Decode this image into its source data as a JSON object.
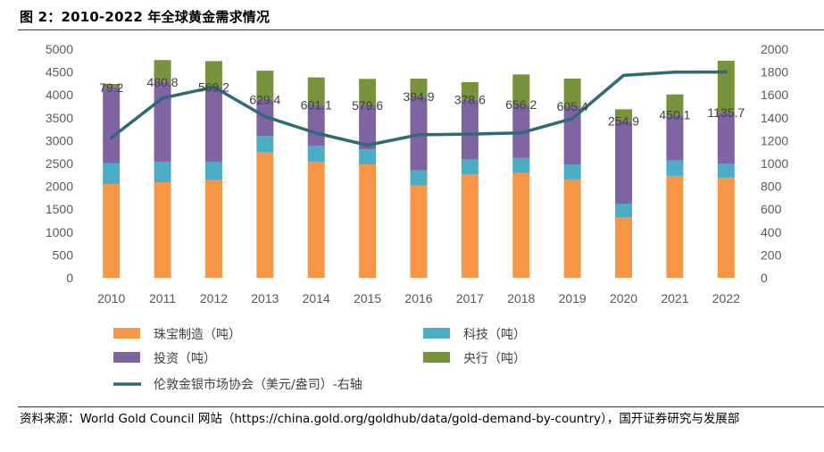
{
  "header": {
    "title": "图 2：2010-2022 年全球黄金需求情况"
  },
  "footer": {
    "source": "资料来源：World Gold Council 网站（https://china.gold.org/goldhub/data/gold-demand-by-country），国开证券研究与发展部"
  },
  "colors": {
    "jewelry": "#f79646",
    "tech": "#4bacc6",
    "invest": "#8064a2",
    "central": "#77933c",
    "price": "#2e6b74",
    "rule": "#c00000"
  },
  "chart_data": {
    "type": "bar",
    "stacked": true,
    "categories": [
      "2010",
      "2011",
      "2012",
      "2013",
      "2014",
      "2015",
      "2016",
      "2017",
      "2018",
      "2019",
      "2020",
      "2021",
      "2022"
    ],
    "series": [
      {
        "name": "珠宝制造（吨）",
        "color_key": "jewelry",
        "values": [
          2050,
          2090,
          2140,
          2740,
          2540,
          2480,
          2020,
          2260,
          2290,
          2150,
          1320,
          2230,
          2190
        ]
      },
      {
        "name": "科技（吨）",
        "color_key": "tech",
        "values": [
          460,
          450,
          400,
          360,
          350,
          330,
          330,
          330,
          330,
          330,
          300,
          340,
          310
        ]
      },
      {
        "name": "投资（吨）",
        "color_key": "invest",
        "values": [
          1650,
          1740,
          1630,
          800,
          890,
          960,
          1610,
          1310,
          1170,
          1270,
          1810,
          990,
          1110
        ]
      },
      {
        "name": "央行（吨）",
        "color_key": "central",
        "values": [
          79.2,
          480.8,
          569.2,
          629.4,
          601.1,
          579.6,
          394.9,
          378.6,
          656.2,
          605.4,
          254.9,
          450.1,
          1135.7
        ]
      }
    ],
    "labels": [
      "79.2",
      "480.8",
      "569.2",
      "629.4",
      "601.1",
      "579.6",
      "394.9",
      "378.6",
      "656.2",
      "605.4",
      "254.9",
      "450.1",
      "1135.7"
    ],
    "line": {
      "name": "伦敦金银市场协会（美元/盎司）-右轴",
      "color_key": "price",
      "values": [
        1225,
        1572,
        1669,
        1411,
        1266,
        1160,
        1251,
        1257,
        1268,
        1393,
        1770,
        1799,
        1800
      ]
    },
    "y_left": {
      "min": 0,
      "max": 5000,
      "step": 500,
      "ticks": [
        "0",
        "500",
        "1000",
        "1500",
        "2000",
        "2500",
        "3000",
        "3500",
        "4000",
        "4500",
        "5000"
      ]
    },
    "y_right": {
      "min": 0,
      "max": 2000,
      "step": 200,
      "ticks": [
        "0",
        "200",
        "400",
        "600",
        "800",
        "1000",
        "1200",
        "1400",
        "1600",
        "1800",
        "2000"
      ]
    },
    "grid": false,
    "legend_position": "bottom"
  }
}
